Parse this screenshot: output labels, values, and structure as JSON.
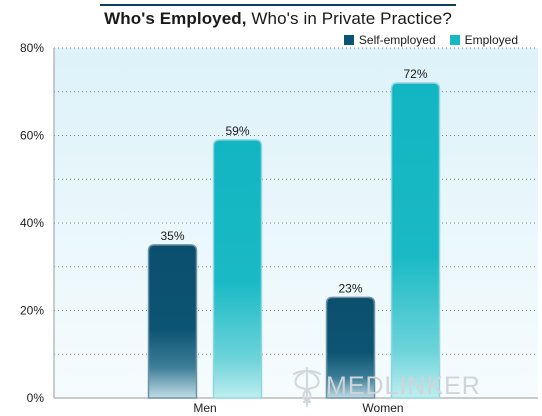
{
  "title": {
    "bold": "Who's Employed,",
    "rest": " Who's in Private Practice?"
  },
  "watermark": {
    "text": "MEDLINKER",
    "icon": "medical-caduceus-icon"
  },
  "colors": {
    "self_employed": "#0c5473",
    "employed": "#15b8c4",
    "plot_bg_top": "#ddf2f9",
    "plot_bg_bottom": "#f6fcfe"
  },
  "chart_data": {
    "type": "bar",
    "title": "Who's Employed, Who's in Private Practice?",
    "categories": [
      "Men",
      "Women"
    ],
    "series": [
      {
        "name": "Self-employed",
        "values": [
          35,
          23
        ],
        "labels": [
          "35%",
          "23%"
        ]
      },
      {
        "name": "Employed",
        "values": [
          59,
          72
        ],
        "labels": [
          "59%",
          "72%"
        ]
      }
    ],
    "ylim": [
      0,
      80
    ],
    "yticks": [
      0,
      20,
      40,
      60,
      80
    ],
    "ytick_labels": [
      "0%",
      "20%",
      "40%",
      "60%",
      "80%"
    ],
    "grid": true,
    "legend": "top-right",
    "xlabel": "",
    "ylabel": ""
  }
}
